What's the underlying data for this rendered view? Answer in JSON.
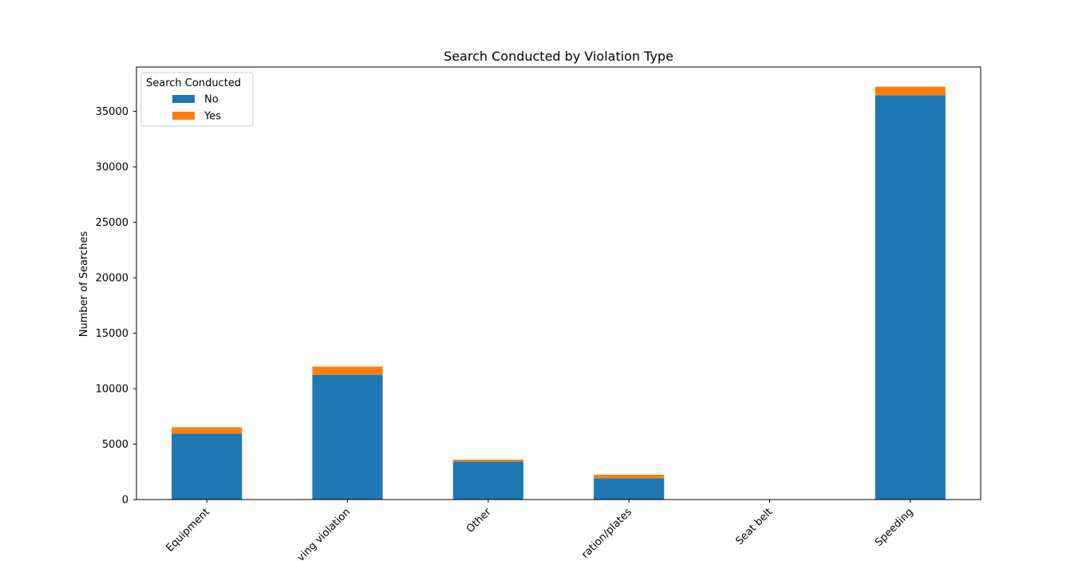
{
  "chart_data": {
    "type": "bar",
    "stacked": true,
    "title": "Search Conducted by Violation Type",
    "xlabel": "",
    "ylabel": "Number of Searches",
    "categories": [
      "Equipment",
      "Moving violation",
      "Other",
      "Registration/plates",
      "Seat belt",
      "Speeding"
    ],
    "visible_tick_labels": [
      "Equipment",
      "ving violation",
      "Other",
      "ration/plates",
      "Seat belt",
      "Speeding"
    ],
    "series": [
      {
        "name": "No",
        "color": "#1f77b4",
        "values": [
          5950,
          11250,
          3430,
          1920,
          0,
          36450
        ]
      },
      {
        "name": "Yes",
        "color": "#ff7f0e",
        "values": [
          570,
          740,
          170,
          320,
          0,
          780
        ]
      }
    ],
    "ylim": [
      0,
      39000
    ],
    "yticks": [
      0,
      5000,
      10000,
      15000,
      20000,
      25000,
      30000,
      35000
    ],
    "grid": false,
    "legend": {
      "title": "Search Conducted",
      "placement": "top-left"
    }
  }
}
